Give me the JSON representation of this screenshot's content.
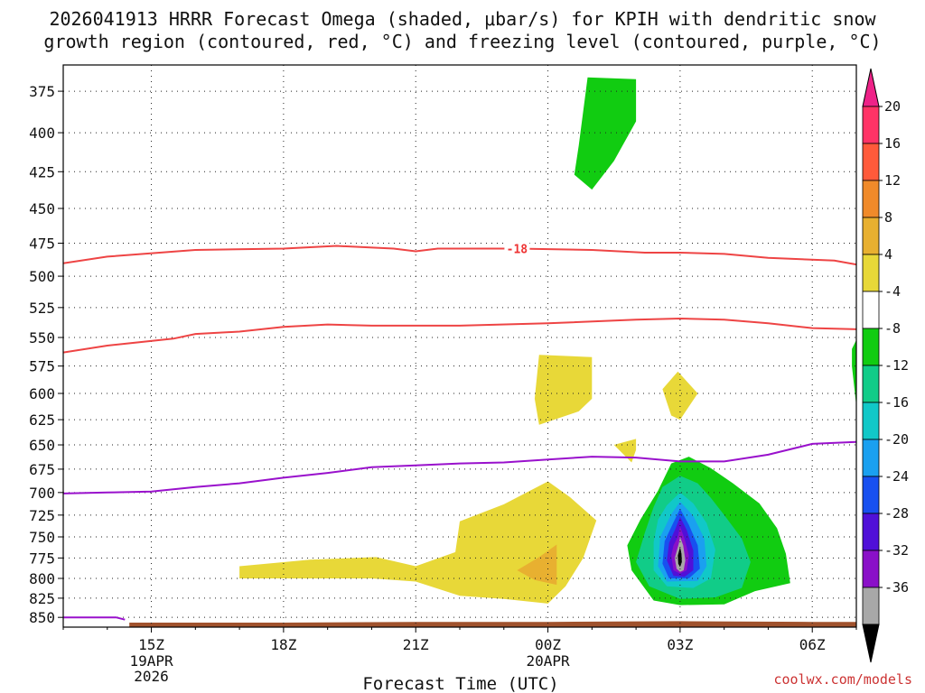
{
  "chart_data": {
    "type": "heatmap",
    "title_line1": "2026041913 HRRR Forecast Omega (shaded, μbar/s) for KPIH with dendritic snow",
    "title_line2": "growth region (contoured, red, °C) and freezing level (contoured, purple, °C)",
    "xlabel": "Forecast Time (UTC)",
    "credit": "coolwx.com/models",
    "x_ticks": [
      {
        "x": 15,
        "label": "15Z",
        "sub1": "19APR",
        "sub2": "2026"
      },
      {
        "x": 18,
        "label": "18Z",
        "sub1": "",
        "sub2": ""
      },
      {
        "x": 21,
        "label": "21Z",
        "sub1": "",
        "sub2": ""
      },
      {
        "x": 24,
        "label": "00Z",
        "sub1": "20APR",
        "sub2": ""
      },
      {
        "x": 27,
        "label": "03Z",
        "sub1": "",
        "sub2": ""
      },
      {
        "x": 30,
        "label": "06Z",
        "sub1": "",
        "sub2": ""
      }
    ],
    "xlim": [
      13.0,
      31.0
    ],
    "y_ticks": [
      375,
      400,
      425,
      450,
      475,
      500,
      525,
      550,
      575,
      600,
      625,
      650,
      675,
      700,
      725,
      750,
      775,
      800,
      825,
      850
    ],
    "ylim": [
      360,
      863
    ],
    "y_scale": "log",
    "y_inverted": true,
    "grid": true,
    "colorbar": {
      "labels": [
        "20",
        "16",
        "12",
        "8",
        "4",
        "-4",
        "-8",
        "-12",
        "-16",
        "-20",
        "-24",
        "-28",
        "-32",
        "-36"
      ],
      "colors": [
        "#ff3366",
        "#ff5a3a",
        "#f08a2a",
        "#e8b030",
        "#e8d838",
        "#ffffff",
        "#11cc11",
        "#11cc88",
        "#11c8c8",
        "#1aa0f0",
        "#1850f0",
        "#5010d8",
        "#8a10c8",
        "#a8a8a8"
      ],
      "top_arrow_color": "#ee2288",
      "bottom_arrow_color": "#000000"
    },
    "contours": [
      {
        "name": "-18",
        "color": "#ee4444",
        "label_x": 23.3,
        "points": [
          [
            13.0,
            490
          ],
          [
            14.0,
            485
          ],
          [
            16.0,
            480
          ],
          [
            18.0,
            479
          ],
          [
            19.2,
            477
          ],
          [
            20.5,
            479
          ],
          [
            21.0,
            481
          ],
          [
            21.5,
            479
          ],
          [
            23.3,
            479
          ],
          [
            25.0,
            480
          ],
          [
            26.2,
            482
          ],
          [
            27.0,
            482
          ],
          [
            28.0,
            483
          ],
          [
            29.0,
            486
          ],
          [
            30.5,
            488
          ],
          [
            31.0,
            491
          ]
        ]
      },
      {
        "name": "-12",
        "color": "#ee4444",
        "label_x": null,
        "points": [
          [
            13.0,
            563
          ],
          [
            14.0,
            557
          ],
          [
            15.5,
            551
          ],
          [
            16.0,
            547
          ],
          [
            17.0,
            545
          ],
          [
            18.0,
            541
          ],
          [
            19.0,
            539
          ],
          [
            20.0,
            540
          ],
          [
            22.0,
            540
          ],
          [
            24.0,
            538
          ],
          [
            26.0,
            535
          ],
          [
            27.0,
            534
          ],
          [
            28.0,
            535
          ],
          [
            29.0,
            538
          ],
          [
            30.0,
            542
          ],
          [
            31.0,
            543
          ]
        ]
      },
      {
        "name": "0",
        "color": "#9911cc",
        "label_x": null,
        "points": [
          [
            13.0,
            701
          ],
          [
            14.0,
            700
          ],
          [
            15.0,
            699
          ],
          [
            16.0,
            694
          ],
          [
            17.0,
            690
          ],
          [
            18.0,
            684
          ],
          [
            19.0,
            679
          ],
          [
            20.0,
            673
          ],
          [
            21.0,
            671
          ],
          [
            22.0,
            669
          ],
          [
            23.0,
            668
          ],
          [
            24.0,
            665
          ],
          [
            25.0,
            662
          ],
          [
            26.0,
            663
          ],
          [
            27.0,
            667
          ],
          [
            28.0,
            667
          ],
          [
            29.0,
            660
          ],
          [
            30.0,
            649
          ],
          [
            31.0,
            647
          ]
        ]
      },
      {
        "name": "0",
        "color": "#9911cc",
        "label_x": null,
        "points": [
          [
            13.0,
            850
          ],
          [
            14.2,
            850
          ],
          [
            14.4,
            853
          ]
        ]
      }
    ],
    "shaded": [
      {
        "value": -8,
        "color": "#11cc11",
        "polygon": [
          [
            24.9,
            367
          ],
          [
            26.0,
            368
          ],
          [
            26.0,
            393
          ],
          [
            25.5,
            418
          ],
          [
            25.0,
            437
          ],
          [
            24.6,
            427
          ],
          [
            24.7,
            408
          ]
        ]
      },
      {
        "value": -8,
        "color": "#11cc11",
        "polygon": [
          [
            31.0,
            552
          ],
          [
            30.9,
            560
          ],
          [
            30.9,
            575
          ],
          [
            31.0,
            612
          ]
        ]
      },
      {
        "value": 4,
        "color": "#e8d838",
        "polygon": [
          [
            23.8,
            565
          ],
          [
            25.0,
            567
          ],
          [
            25.0,
            605
          ],
          [
            24.7,
            617
          ],
          [
            23.8,
            630
          ],
          [
            23.7,
            605
          ]
        ]
      },
      {
        "value": 4,
        "color": "#e8d838",
        "polygon": [
          [
            26.6,
            596
          ],
          [
            26.95,
            580
          ],
          [
            27.4,
            600
          ],
          [
            27.0,
            625
          ],
          [
            26.8,
            621
          ]
        ]
      },
      {
        "value": 4,
        "color": "#e8d838",
        "polygon": [
          [
            25.5,
            650
          ],
          [
            26.0,
            644
          ],
          [
            26.0,
            655
          ],
          [
            25.9,
            668
          ]
        ]
      },
      {
        "value": 4,
        "color": "#e8d838",
        "polygon": [
          [
            17.0,
            785
          ],
          [
            18.6,
            777
          ],
          [
            20.1,
            774
          ],
          [
            21.0,
            785
          ],
          [
            21.9,
            768
          ],
          [
            22.0,
            732
          ],
          [
            23.0,
            713
          ],
          [
            24.0,
            688
          ],
          [
            24.5,
            705
          ],
          [
            25.1,
            731
          ],
          [
            24.8,
            775
          ],
          [
            24.4,
            810
          ],
          [
            24.0,
            832
          ],
          [
            23.0,
            826
          ],
          [
            22.0,
            822
          ],
          [
            21.0,
            804
          ],
          [
            20.0,
            800
          ],
          [
            18.0,
            800
          ],
          [
            17.0,
            800
          ]
        ]
      },
      {
        "value": 8,
        "color": "#e8b030",
        "polygon": [
          [
            23.3,
            790
          ],
          [
            23.8,
            774
          ],
          [
            24.2,
            759
          ],
          [
            24.2,
            788
          ],
          [
            24.2,
            808
          ],
          [
            23.7,
            802
          ]
        ]
      },
      {
        "value": -4,
        "color": "#11cc11",
        "polygon": [
          [
            26.8,
            669
          ],
          [
            27.2,
            662
          ],
          [
            27.7,
            674
          ],
          [
            28.2,
            690
          ],
          [
            28.8,
            712
          ],
          [
            29.2,
            740
          ],
          [
            29.4,
            770
          ],
          [
            29.5,
            806
          ],
          [
            28.7,
            816
          ],
          [
            28.0,
            833
          ],
          [
            27.0,
            834
          ],
          [
            26.4,
            828
          ],
          [
            25.9,
            790
          ],
          [
            25.8,
            760
          ],
          [
            26.1,
            730
          ],
          [
            26.5,
            698
          ]
        ]
      },
      {
        "value": -8,
        "color": "#11cc88",
        "polygon": [
          [
            26.6,
            694
          ],
          [
            27.0,
            682
          ],
          [
            27.4,
            690
          ],
          [
            27.7,
            706
          ],
          [
            28.0,
            725
          ],
          [
            28.4,
            752
          ],
          [
            28.6,
            780
          ],
          [
            28.4,
            812
          ],
          [
            27.8,
            824
          ],
          [
            27.0,
            826
          ],
          [
            26.3,
            810
          ],
          [
            26.0,
            780
          ],
          [
            26.2,
            745
          ],
          [
            26.4,
            716
          ]
        ]
      },
      {
        "value": -12,
        "color": "#11c8c8",
        "polygon": [
          [
            26.7,
            714
          ],
          [
            27.0,
            700
          ],
          [
            27.3,
            712
          ],
          [
            27.6,
            734
          ],
          [
            27.8,
            765
          ],
          [
            27.7,
            800
          ],
          [
            27.3,
            812
          ],
          [
            26.7,
            810
          ],
          [
            26.4,
            790
          ],
          [
            26.4,
            756
          ],
          [
            26.5,
            730
          ]
        ]
      },
      {
        "value": -16,
        "color": "#1aa0f0",
        "polygon": [
          [
            26.8,
            724
          ],
          [
            27.0,
            710
          ],
          [
            27.3,
            726
          ],
          [
            27.55,
            752
          ],
          [
            27.6,
            785
          ],
          [
            27.4,
            803
          ],
          [
            26.7,
            804
          ],
          [
            26.5,
            785
          ],
          [
            26.55,
            750
          ]
        ]
      },
      {
        "value": -20,
        "color": "#1850f0",
        "polygon": [
          [
            26.85,
            733
          ],
          [
            27.0,
            718
          ],
          [
            27.2,
            736
          ],
          [
            27.4,
            760
          ],
          [
            27.45,
            788
          ],
          [
            27.2,
            800
          ],
          [
            26.75,
            800
          ],
          [
            26.6,
            782
          ],
          [
            26.65,
            755
          ]
        ]
      },
      {
        "value": -24,
        "color": "#5010d8",
        "polygon": [
          [
            26.9,
            740
          ],
          [
            27.0,
            727
          ],
          [
            27.15,
            742
          ],
          [
            27.3,
            766
          ],
          [
            27.3,
            790
          ],
          [
            27.1,
            798
          ],
          [
            26.85,
            797
          ],
          [
            26.7,
            778
          ],
          [
            26.75,
            757
          ]
        ]
      },
      {
        "value": -28,
        "color": "#8a10c8",
        "polygon": [
          [
            26.95,
            750
          ],
          [
            27.0,
            738
          ],
          [
            27.1,
            752
          ],
          [
            27.2,
            772
          ],
          [
            27.15,
            790
          ],
          [
            27.0,
            794
          ],
          [
            26.85,
            790
          ],
          [
            26.8,
            772
          ],
          [
            26.85,
            760
          ]
        ]
      },
      {
        "value": -32,
        "color": "#a8a8a8",
        "polygon": [
          [
            26.97,
            758
          ],
          [
            27.0,
            750
          ],
          [
            27.07,
            760
          ],
          [
            27.12,
            778
          ],
          [
            27.08,
            790
          ],
          [
            27.0,
            792
          ],
          [
            26.92,
            788
          ],
          [
            26.88,
            775
          ]
        ]
      },
      {
        "value": -36,
        "color": "#000000",
        "polygon": [
          [
            26.98,
            766
          ],
          [
            27.0,
            762
          ],
          [
            27.03,
            770
          ],
          [
            27.04,
            780
          ],
          [
            27.0,
            786
          ],
          [
            26.96,
            782
          ],
          [
            26.95,
            772
          ]
        ]
      }
    ],
    "terrain": {
      "color": "#a0522d",
      "polygon": [
        [
          13.0,
          863
        ],
        [
          14.5,
          863
        ],
        [
          14.5,
          857
        ],
        [
          18.0,
          857
        ],
        [
          21.0,
          856
        ],
        [
          24.0,
          856
        ],
        [
          27.0,
          855
        ],
        [
          30.0,
          856
        ],
        [
          31.0,
          856
        ],
        [
          31.0,
          863
        ]
      ]
    }
  }
}
